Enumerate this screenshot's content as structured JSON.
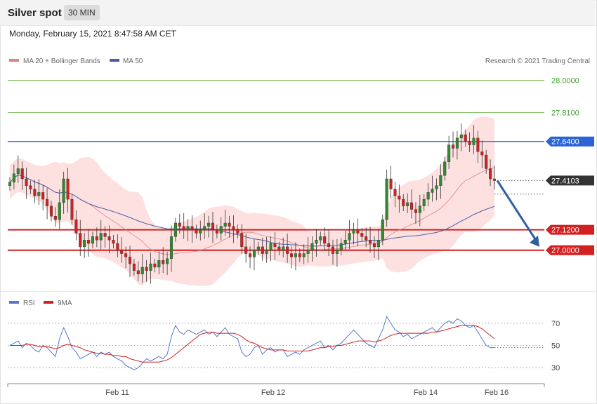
{
  "header": {
    "title": "Silver spot",
    "timeframe": "30 MIN"
  },
  "date": "Monday, February 15, 2021 8:47:58 AM CET",
  "legend": {
    "bollinger": "MA 20 + Bollinger Bands",
    "ma50": "MA 50",
    "copyright": "Research © 2021 Trading Central",
    "rsi": "RSI",
    "rsi_ma": "9MA"
  },
  "colors": {
    "bull": "#2e8b2e",
    "bear": "#d42020",
    "band": "#fcd6d6",
    "ma20": "#d98585",
    "ma50": "#4a5fa8",
    "resistance": "#2a64d6",
    "support": "#d42020",
    "target": "#7fbf5f",
    "arrow": "#2f5f9f",
    "rsi": "#5577cc",
    "rsi_ma": "#d42020"
  },
  "chart_data": [
    {
      "type": "candlestick",
      "ylim": [
        26.78,
        28.06
      ],
      "xlabels": [
        "Feb 11",
        "Feb 12",
        "Feb 14",
        "Feb 16"
      ],
      "levels": [
        {
          "name": "target-2",
          "value": 28.0,
          "label": "28.0000",
          "kind": "target"
        },
        {
          "name": "target-1",
          "value": 27.81,
          "label": "27.8100",
          "kind": "target"
        },
        {
          "name": "resistance",
          "value": 27.64,
          "label": "27.6400",
          "kind": "resistance"
        },
        {
          "name": "current",
          "value": 27.4103,
          "label": "27.4103",
          "kind": "current"
        },
        {
          "name": "support-1",
          "value": 27.12,
          "label": "27.1200",
          "kind": "support"
        },
        {
          "name": "support-2",
          "value": 27.0,
          "label": "27.0000",
          "kind": "support"
        }
      ],
      "close": [
        27.4,
        27.45,
        27.48,
        27.42,
        27.38,
        27.36,
        27.32,
        27.34,
        27.3,
        27.26,
        27.2,
        27.18,
        27.28,
        27.42,
        27.3,
        27.18,
        27.1,
        27.02,
        27.06,
        27.04,
        27.08,
        27.06,
        27.1,
        27.08,
        27.06,
        27.04,
        27.0,
        26.98,
        26.96,
        26.92,
        26.88,
        26.86,
        26.9,
        26.88,
        26.92,
        26.9,
        26.94,
        26.92,
        26.95,
        27.08,
        27.16,
        27.14,
        27.12,
        27.14,
        27.12,
        27.1,
        27.12,
        27.14,
        27.16,
        27.12,
        27.1,
        27.14,
        27.16,
        27.14,
        27.12,
        27.1,
        27.02,
        26.98,
        26.96,
        27.0,
        27.02,
        26.98,
        27.0,
        27.04,
        27.02,
        27.0,
        27.02,
        26.98,
        26.96,
        26.98,
        26.96,
        26.98,
        27.0,
        27.04,
        27.06,
        27.08,
        27.04,
        27.02,
        26.98,
        27.0,
        27.04,
        27.06,
        27.1,
        27.12,
        27.1,
        27.08,
        27.06,
        27.04,
        27.02,
        27.06,
        27.18,
        27.42,
        27.36,
        27.32,
        27.3,
        27.26,
        27.28,
        27.24,
        27.22,
        27.26,
        27.3,
        27.34,
        27.36,
        27.38,
        27.44,
        27.52,
        27.62,
        27.6,
        27.66,
        27.68,
        27.64,
        27.62,
        27.66,
        27.58,
        27.56,
        27.48,
        27.42,
        27.41
      ],
      "min_annotation": "",
      "rsi": {
        "ylim": [
          20,
          80
        ],
        "levels": [
          70,
          50,
          30
        ],
        "values": [
          50,
          52,
          54,
          48,
          52,
          50,
          46,
          44,
          50,
          48,
          44,
          40,
          56,
          66,
          58,
          48,
          44,
          38,
          40,
          42,
          44,
          40,
          44,
          42,
          44,
          40,
          38,
          36,
          32,
          30,
          28,
          30,
          34,
          38,
          36,
          38,
          40,
          38,
          42,
          58,
          68,
          62,
          60,
          64,
          62,
          60,
          62,
          64,
          60,
          62,
          58,
          62,
          66,
          60,
          58,
          56,
          44,
          40,
          42,
          48,
          50,
          42,
          46,
          48,
          44,
          46,
          46,
          40,
          42,
          44,
          42,
          46,
          48,
          50,
          52,
          54,
          48,
          50,
          46,
          50,
          52,
          56,
          60,
          64,
          60,
          56,
          52,
          50,
          48,
          56,
          64,
          76,
          70,
          64,
          62,
          58,
          60,
          56,
          58,
          60,
          62,
          64,
          66,
          62,
          66,
          70,
          72,
          70,
          74,
          72,
          68,
          66,
          68,
          62,
          56,
          50,
          48,
          48
        ],
        "ma9": [
          50,
          50,
          50,
          50,
          51,
          51,
          50,
          49,
          49,
          49,
          48,
          47,
          48,
          50,
          51,
          50,
          49,
          48,
          46,
          45,
          44,
          43,
          43,
          42,
          42,
          41,
          41,
          40,
          40,
          38,
          37,
          36,
          35,
          35,
          35,
          35,
          35,
          36,
          37,
          39,
          42,
          45,
          48,
          51,
          54,
          57,
          60,
          61,
          62,
          62,
          61,
          61,
          61,
          61,
          61,
          60,
          58,
          55,
          53,
          52,
          50,
          48,
          47,
          46,
          46,
          46,
          46,
          45,
          45,
          45,
          45,
          45,
          45,
          46,
          47,
          48,
          48,
          49,
          49,
          50,
          50,
          51,
          52,
          53,
          54,
          54,
          54,
          54,
          53,
          54,
          55,
          57,
          59,
          60,
          61,
          61,
          61,
          61,
          61,
          61,
          61,
          61,
          62,
          62,
          63,
          64,
          65,
          66,
          67,
          68,
          68,
          68,
          68,
          67,
          65,
          62,
          59,
          56
        ]
      }
    }
  ]
}
